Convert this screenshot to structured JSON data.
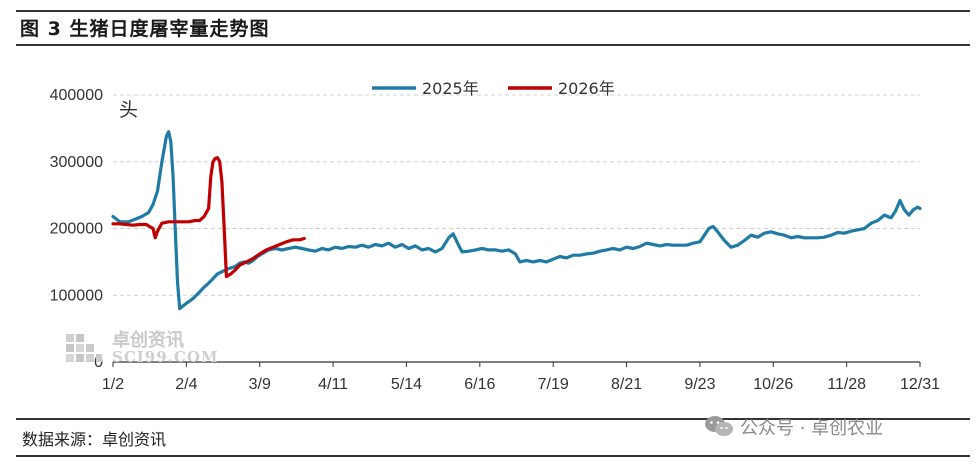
{
  "title": "图 3  生猪日度屠宰量走势图",
  "source": "数据来源：卓创资讯",
  "watermark": {
    "cn": "卓创资讯",
    "en": "SCI99.COM"
  },
  "wechat_credit": "公众号 · 卓创农业",
  "colors": {
    "series_2025": "#1f7ba6",
    "series_2026": "#c00000",
    "grid": "#d0d0d0",
    "axis": "#333333"
  },
  "chart_data": {
    "type": "line",
    "title": "",
    "unit_label": "头",
    "ylim": [
      0,
      400000
    ],
    "yticks": [
      0,
      100000,
      200000,
      300000,
      400000
    ],
    "ytick_labels": [
      "0",
      "100000",
      "200000",
      "300000",
      "400000"
    ],
    "x_range": [
      0,
      363
    ],
    "xticks": [
      0,
      33,
      66,
      99,
      132,
      165,
      198,
      231,
      264,
      297,
      330,
      363
    ],
    "xtick_labels": [
      "1/2",
      "2/4",
      "3/9",
      "4/11",
      "5/14",
      "6/16",
      "7/19",
      "8/21",
      "9/23",
      "10/26",
      "11/28",
      "12/31"
    ],
    "grid": "horizontal dashed",
    "legend": "top-center",
    "series": [
      {
        "name": "2025年",
        "color": "#1f7ba6",
        "points": [
          [
            0,
            218000
          ],
          [
            3,
            210000
          ],
          [
            7,
            210000
          ],
          [
            10,
            214000
          ],
          [
            13,
            218000
          ],
          [
            16,
            224000
          ],
          [
            18,
            236000
          ],
          [
            20,
            256000
          ],
          [
            22,
            300000
          ],
          [
            24,
            338000
          ],
          [
            25,
            345000
          ],
          [
            26,
            330000
          ],
          [
            27,
            280000
          ],
          [
            28,
            200000
          ],
          [
            29,
            120000
          ],
          [
            30,
            80000
          ],
          [
            33,
            88000
          ],
          [
            36,
            95000
          ],
          [
            39,
            105000
          ],
          [
            41,
            112000
          ],
          [
            43,
            118000
          ],
          [
            45,
            125000
          ],
          [
            47,
            132000
          ],
          [
            50,
            137000
          ],
          [
            52,
            140000
          ],
          [
            55,
            143000
          ],
          [
            57,
            148000
          ],
          [
            59,
            150000
          ],
          [
            61,
            148000
          ],
          [
            63,
            152000
          ],
          [
            65,
            158000
          ],
          [
            67,
            162000
          ],
          [
            70,
            168000
          ],
          [
            73,
            170000
          ],
          [
            76,
            168000
          ],
          [
            79,
            170000
          ],
          [
            82,
            172000
          ],
          [
            85,
            170000
          ],
          [
            88,
            168000
          ],
          [
            91,
            166000
          ],
          [
            94,
            170000
          ],
          [
            97,
            168000
          ],
          [
            100,
            172000
          ],
          [
            103,
            170000
          ],
          [
            106,
            173000
          ],
          [
            109,
            172000
          ],
          [
            112,
            175000
          ],
          [
            115,
            172000
          ],
          [
            118,
            176000
          ],
          [
            121,
            174000
          ],
          [
            124,
            178000
          ],
          [
            127,
            172000
          ],
          [
            130,
            176000
          ],
          [
            133,
            170000
          ],
          [
            136,
            174000
          ],
          [
            139,
            168000
          ],
          [
            142,
            170000
          ],
          [
            145,
            165000
          ],
          [
            148,
            170000
          ],
          [
            151,
            186000
          ],
          [
            153,
            192000
          ],
          [
            155,
            178000
          ],
          [
            157,
            165000
          ],
          [
            160,
            166000
          ],
          [
            163,
            168000
          ],
          [
            166,
            170000
          ],
          [
            169,
            168000
          ],
          [
            172,
            168000
          ],
          [
            175,
            166000
          ],
          [
            178,
            168000
          ],
          [
            181,
            162000
          ],
          [
            183,
            150000
          ],
          [
            186,
            152000
          ],
          [
            189,
            150000
          ],
          [
            192,
            152000
          ],
          [
            195,
            150000
          ],
          [
            198,
            154000
          ],
          [
            201,
            158000
          ],
          [
            204,
            156000
          ],
          [
            207,
            160000
          ],
          [
            210,
            160000
          ],
          [
            213,
            162000
          ],
          [
            216,
            163000
          ],
          [
            219,
            166000
          ],
          [
            222,
            168000
          ],
          [
            225,
            170000
          ],
          [
            228,
            168000
          ],
          [
            231,
            172000
          ],
          [
            234,
            170000
          ],
          [
            237,
            173000
          ],
          [
            240,
            178000
          ],
          [
            243,
            176000
          ],
          [
            246,
            174000
          ],
          [
            249,
            176000
          ],
          [
            252,
            175000
          ],
          [
            255,
            175000
          ],
          [
            258,
            175000
          ],
          [
            261,
            178000
          ],
          [
            264,
            180000
          ],
          [
            266,
            190000
          ],
          [
            268,
            200000
          ],
          [
            270,
            203000
          ],
          [
            272,
            195000
          ],
          [
            275,
            182000
          ],
          [
            278,
            172000
          ],
          [
            281,
            175000
          ],
          [
            284,
            182000
          ],
          [
            287,
            190000
          ],
          [
            290,
            187000
          ],
          [
            293,
            193000
          ],
          [
            296,
            195000
          ],
          [
            299,
            192000
          ],
          [
            302,
            190000
          ],
          [
            305,
            186000
          ],
          [
            308,
            188000
          ],
          [
            311,
            186000
          ],
          [
            314,
            186000
          ],
          [
            317,
            186000
          ],
          [
            320,
            187000
          ],
          [
            323,
            190000
          ],
          [
            326,
            194000
          ],
          [
            329,
            193000
          ],
          [
            332,
            196000
          ],
          [
            335,
            198000
          ],
          [
            338,
            200000
          ],
          [
            341,
            208000
          ],
          [
            344,
            212000
          ],
          [
            347,
            220000
          ],
          [
            350,
            216000
          ],
          [
            352,
            226000
          ],
          [
            354,
            242000
          ],
          [
            356,
            228000
          ],
          [
            358,
            220000
          ],
          [
            360,
            228000
          ],
          [
            362,
            232000
          ],
          [
            363,
            230000
          ]
        ]
      },
      {
        "name": "2026年",
        "color": "#c00000",
        "points": [
          [
            0,
            207000
          ],
          [
            3,
            207000
          ],
          [
            6,
            206000
          ],
          [
            9,
            205000
          ],
          [
            12,
            206000
          ],
          [
            15,
            206000
          ],
          [
            18,
            200000
          ],
          [
            19,
            186000
          ],
          [
            20,
            196000
          ],
          [
            22,
            208000
          ],
          [
            25,
            210000
          ],
          [
            28,
            210000
          ],
          [
            31,
            210000
          ],
          [
            34,
            210000
          ],
          [
            37,
            212000
          ],
          [
            39,
            212000
          ],
          [
            41,
            218000
          ],
          [
            43,
            230000
          ],
          [
            44,
            278000
          ],
          [
            45,
            300000
          ],
          [
            46,
            305000
          ],
          [
            47,
            306000
          ],
          [
            48,
            300000
          ],
          [
            49,
            270000
          ],
          [
            50,
            200000
          ],
          [
            51,
            128000
          ],
          [
            53,
            132000
          ],
          [
            55,
            138000
          ],
          [
            57,
            145000
          ],
          [
            60,
            150000
          ],
          [
            63,
            155000
          ],
          [
            66,
            162000
          ],
          [
            69,
            168000
          ],
          [
            72,
            172000
          ],
          [
            75,
            176000
          ],
          [
            78,
            180000
          ],
          [
            81,
            183000
          ],
          [
            84,
            183000
          ],
          [
            86,
            185000
          ]
        ]
      }
    ]
  }
}
